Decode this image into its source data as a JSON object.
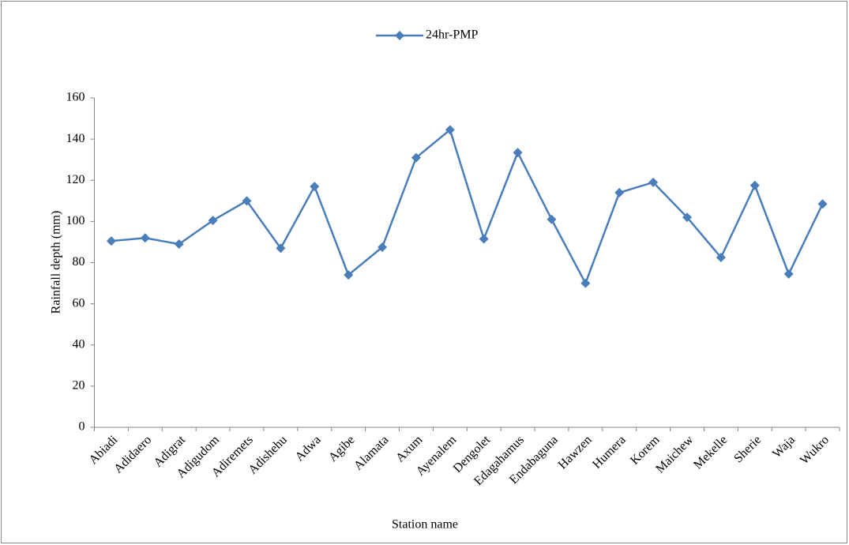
{
  "chart_data": {
    "type": "line",
    "x_label": "Station name",
    "y_label": "Rainfall depth  (mm)",
    "categories": [
      "Abiadi",
      "Adidaero",
      "Adigrat",
      "Adigudom",
      "Adiremets",
      "Adishehu",
      "Adwa",
      "Agibe",
      "Alamata",
      "Axum",
      "Ayenalem",
      "Dengolet",
      "Edagahamus",
      "Endabaguna",
      "Hawzen",
      "Humera",
      "Korem",
      "Maichew",
      "Mekelle",
      "Sherie",
      "Waja",
      "Wukro"
    ],
    "series": [
      {
        "name": "24hr-PMP",
        "color": "#4a7ebb",
        "values": [
          90.5,
          92,
          89,
          100.5,
          110,
          87,
          117,
          74,
          87.5,
          131,
          144.5,
          91.5,
          133.5,
          101,
          70,
          114,
          119,
          102,
          82.5,
          117.5,
          74.5,
          108.5
        ]
      }
    ],
    "ylim": [
      0,
      160
    ],
    "yticks": [
      0,
      20,
      40,
      60,
      80,
      100,
      120,
      140,
      160
    ],
    "grid": false,
    "legend": "top"
  }
}
